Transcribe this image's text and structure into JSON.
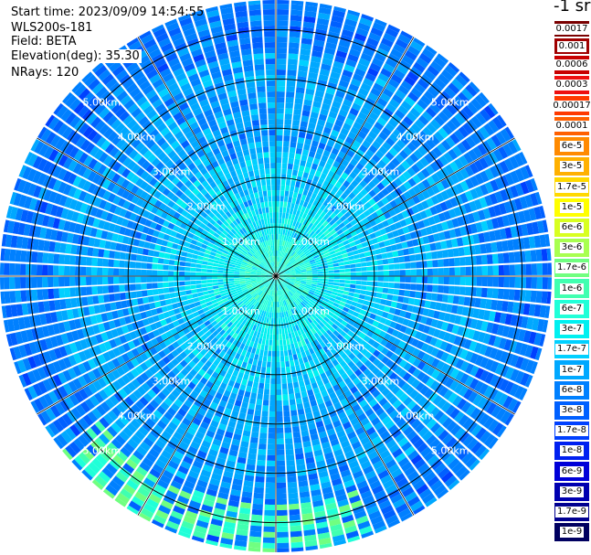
{
  "header": {
    "start_time": "Start time: 2023/09/09 14:54:55",
    "instrument": "WLS200s-181",
    "field": "Field: BETA",
    "elevation": "Elevation(deg): 35.30",
    "nrays": "NRays: 120"
  },
  "colorbar": {
    "units": "-1 sr",
    "levels": [
      {
        "label": "0.0017",
        "color": "#7a0000"
      },
      {
        "label": "0.001",
        "color": "#a00000"
      },
      {
        "label": "0.0006",
        "color": "#c80000"
      },
      {
        "label": "0.0003",
        "color": "#ee1010"
      },
      {
        "label": "0.00017",
        "color": "#ff3a00"
      },
      {
        "label": "0.0001",
        "color": "#ff6000"
      },
      {
        "label": "6e-5",
        "color": "#ff8a00"
      },
      {
        "label": "3e-5",
        "color": "#ffb000"
      },
      {
        "label": "1.7e-5",
        "color": "#ffd800"
      },
      {
        "label": "1e-5",
        "color": "#ffff00"
      },
      {
        "label": "6e-6",
        "color": "#d8ff20"
      },
      {
        "label": "3e-6",
        "color": "#a8ff50"
      },
      {
        "label": "1.7e-6",
        "color": "#70ff80"
      },
      {
        "label": "1e-6",
        "color": "#40ffb0"
      },
      {
        "label": "6e-7",
        "color": "#20ffd8"
      },
      {
        "label": "3e-7",
        "color": "#00f0f0"
      },
      {
        "label": "1.7e-7",
        "color": "#00d0ff"
      },
      {
        "label": "1e-7",
        "color": "#00a8ff"
      },
      {
        "label": "6e-8",
        "color": "#0080ff"
      },
      {
        "label": "3e-8",
        "color": "#0060ff"
      },
      {
        "label": "1.7e-8",
        "color": "#0040ff"
      },
      {
        "label": "1e-8",
        "color": "#0020f0"
      },
      {
        "label": "6e-9",
        "color": "#0000d8"
      },
      {
        "label": "3e-9",
        "color": "#0000b0"
      },
      {
        "label": "1.7e-9",
        "color": "#000090"
      },
      {
        "label": "1e-9",
        "color": "#000060"
      }
    ]
  },
  "chart_data": {
    "type": "heatmap",
    "projection": "polar (PPI scan)",
    "field": "BETA",
    "nrays": 120,
    "range_unit": "km",
    "range_rings": [
      {
        "value": 1.0,
        "label": "1.00km"
      },
      {
        "value": 2.0,
        "label": "2.00km"
      },
      {
        "value": 3.0,
        "label": "3.00km"
      },
      {
        "value": 4.0,
        "label": "4.00km"
      },
      {
        "value": 5.0,
        "label": "5.00km"
      }
    ],
    "max_range_km": 5.6,
    "radial_lines_deg": [
      0,
      30,
      60,
      90,
      120,
      150,
      180,
      210,
      240,
      270,
      300,
      330
    ],
    "color_scale": "log",
    "value_range": [
      1e-09,
      0.0017
    ],
    "description_profile": [
      {
        "range_km": 0.3,
        "typical_level": "6e-7"
      },
      {
        "range_km": 1.0,
        "typical_level": "3e-7"
      },
      {
        "range_km": 2.0,
        "typical_level": "1.7e-7"
      },
      {
        "range_km": 3.0,
        "typical_level": "1e-7"
      },
      {
        "range_km": 4.0,
        "typical_level": "1e-7"
      },
      {
        "range_km": 5.0,
        "typical_level": "6e-8"
      }
    ],
    "enhanced_sector": {
      "azimuth_deg": [
        160,
        230
      ],
      "range_km": [
        4.6,
        5.6
      ],
      "level": "1.7e-6"
    }
  }
}
